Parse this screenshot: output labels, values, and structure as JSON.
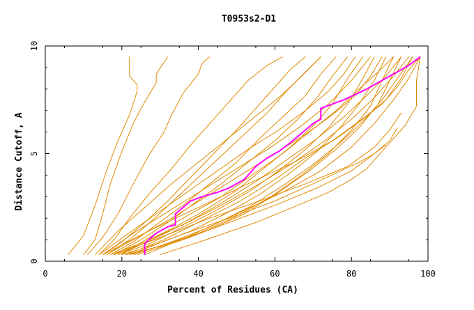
{
  "chart_data": {
    "type": "line",
    "title": "T0953s2-D1",
    "xlabel": "Percent of Residues (CA)",
    "ylabel": "Distance Cutoff, A",
    "xlim": [
      0,
      100
    ],
    "ylim": [
      0,
      10
    ],
    "x_ticks": [
      0,
      20,
      40,
      60,
      80,
      100
    ],
    "y_ticks": [
      0,
      5,
      10
    ],
    "x_tick_labels": [
      "0",
      "20",
      "40",
      "60",
      "80",
      "100"
    ],
    "y_tick_labels": [
      "0",
      "5",
      "10"
    ],
    "colors": {
      "background_series": "#e08a00",
      "highlight_series": "#ff00ff",
      "axis": "#000000"
    },
    "highlight_series": {
      "name": "highlight",
      "x": [
        26,
        26,
        27,
        29,
        32,
        34,
        34,
        36,
        38,
        41,
        45,
        48,
        52,
        54,
        55,
        58,
        61,
        64,
        66,
        68,
        70,
        72,
        72,
        78,
        84,
        88,
        92,
        95,
        98
      ],
      "y": [
        0.3,
        0.8,
        1.0,
        1.3,
        1.6,
        1.7,
        2.2,
        2.5,
        2.8,
        3.0,
        3.2,
        3.4,
        3.8,
        4.2,
        4.4,
        4.8,
        5.1,
        5.5,
        5.8,
        6.1,
        6.4,
        6.6,
        7.1,
        7.5,
        8.0,
        8.4,
        8.8,
        9.1,
        9.5
      ]
    },
    "series": [
      {
        "name": "s01",
        "x": [
          6,
          10,
          13,
          16,
          19,
          22,
          24,
          24,
          22,
          22
        ],
        "y": [
          0.3,
          1.2,
          2.6,
          4.2,
          5.6,
          6.8,
          7.9,
          8.2,
          8.6,
          9.5
        ]
      },
      {
        "name": "s02",
        "x": [
          10,
          13,
          15,
          17,
          20,
          23,
          25,
          29,
          29,
          32
        ],
        "y": [
          0.3,
          1.0,
          2.2,
          3.6,
          5.1,
          6.4,
          7.1,
          8.3,
          8.7,
          9.5
        ]
      },
      {
        "name": "s03",
        "x": [
          11,
          15,
          19,
          23,
          27,
          31,
          33,
          36,
          40,
          41,
          43
        ],
        "y": [
          0.3,
          1.1,
          2.2,
          3.6,
          4.9,
          6.0,
          6.8,
          7.8,
          8.7,
          9.2,
          9.5
        ]
      },
      {
        "name": "s04",
        "x": [
          14,
          18,
          22,
          27,
          33,
          38,
          43,
          48,
          53,
          58,
          62
        ],
        "y": [
          0.3,
          1.0,
          2.0,
          3.1,
          4.3,
          5.4,
          6.4,
          7.4,
          8.4,
          9.1,
          9.5
        ]
      },
      {
        "name": "s05",
        "x": [
          15,
          20,
          26,
          32,
          38,
          44,
          50,
          55,
          60,
          64,
          68
        ],
        "y": [
          0.3,
          0.9,
          1.8,
          2.8,
          3.9,
          5.0,
          6.1,
          7.1,
          8.1,
          8.9,
          9.5
        ]
      },
      {
        "name": "s06",
        "x": [
          16,
          22,
          28,
          34,
          40,
          46,
          52,
          58,
          63,
          68,
          72
        ],
        "y": [
          0.3,
          1.0,
          1.9,
          2.9,
          3.9,
          4.9,
          5.9,
          6.9,
          7.9,
          8.8,
          9.5
        ]
      },
      {
        "name": "s07",
        "x": [
          17,
          23,
          29,
          36,
          43,
          50,
          56,
          62,
          68,
          72,
          76
        ],
        "y": [
          0.3,
          0.9,
          1.7,
          2.6,
          3.6,
          4.6,
          5.7,
          6.7,
          7.7,
          8.7,
          9.5
        ]
      },
      {
        "name": "s08",
        "x": [
          18,
          25,
          32,
          39,
          46,
          53,
          60,
          66,
          71,
          75,
          79
        ],
        "y": [
          0.3,
          1.0,
          1.8,
          2.7,
          3.6,
          4.6,
          5.6,
          6.6,
          7.6,
          8.6,
          9.5
        ]
      },
      {
        "name": "s09",
        "x": [
          18,
          26,
          34,
          42,
          50,
          57,
          64,
          70,
          75,
          79,
          83
        ],
        "y": [
          0.3,
          0.9,
          1.6,
          2.4,
          3.3,
          4.3,
          5.3,
          6.3,
          7.3,
          8.5,
          9.5
        ]
      },
      {
        "name": "s10",
        "x": [
          19,
          27,
          35,
          44,
          53,
          61,
          68,
          74,
          79,
          83,
          86
        ],
        "y": [
          0.3,
          0.8,
          1.5,
          2.3,
          3.2,
          4.2,
          5.2,
          6.2,
          7.3,
          8.5,
          9.5
        ]
      },
      {
        "name": "s11",
        "x": [
          20,
          29,
          38,
          47,
          56,
          64,
          71,
          77,
          82,
          86,
          89
        ],
        "y": [
          0.3,
          0.8,
          1.4,
          2.2,
          3.1,
          4.1,
          5.1,
          6.2,
          7.3,
          8.4,
          9.5
        ]
      },
      {
        "name": "s12",
        "x": [
          21,
          30,
          40,
          50,
          59,
          67,
          74,
          80,
          85,
          88,
          91
        ],
        "y": [
          0.3,
          0.7,
          1.3,
          2.1,
          3.0,
          4.0,
          5.0,
          6.1,
          7.2,
          8.4,
          9.5
        ]
      },
      {
        "name": "s13",
        "x": [
          22,
          32,
          42,
          52,
          61,
          69,
          76,
          82,
          87,
          90,
          93
        ],
        "y": [
          0.3,
          0.8,
          1.4,
          2.2,
          3.2,
          4.2,
          5.2,
          6.2,
          7.3,
          8.4,
          9.5
        ]
      },
      {
        "name": "s14",
        "x": [
          16,
          24,
          33,
          42,
          51,
          60,
          68,
          75,
          81,
          85,
          88
        ],
        "y": [
          0.3,
          1.1,
          2.0,
          3.0,
          4.0,
          5.0,
          5.9,
          6.8,
          7.7,
          8.6,
          9.5
        ]
      },
      {
        "name": "s15",
        "x": [
          14,
          21,
          29,
          37,
          45,
          53,
          61,
          68,
          74,
          78,
          81
        ],
        "y": [
          0.3,
          1.2,
          2.2,
          3.2,
          4.2,
          5.2,
          6.1,
          7.0,
          7.9,
          8.7,
          9.5
        ]
      },
      {
        "name": "s16",
        "x": [
          19,
          28,
          37,
          46,
          55,
          63,
          71,
          78,
          84,
          89,
          93
        ],
        "y": [
          0.3,
          1.0,
          1.8,
          2.7,
          3.7,
          4.7,
          5.7,
          6.7,
          7.7,
          8.6,
          9.5
        ]
      },
      {
        "name": "s17",
        "x": [
          17,
          26,
          36,
          46,
          56,
          65,
          73,
          80,
          86,
          91,
          95
        ],
        "y": [
          0.3,
          0.9,
          1.7,
          2.6,
          3.6,
          4.6,
          5.6,
          6.6,
          7.6,
          8.6,
          9.5
        ]
      },
      {
        "name": "s18",
        "x": [
          23,
          33,
          43,
          53,
          62,
          70,
          77,
          83,
          88,
          92,
          96
        ],
        "y": [
          0.3,
          0.9,
          1.6,
          2.5,
          3.5,
          4.5,
          5.5,
          6.5,
          7.5,
          8.5,
          9.5
        ]
      },
      {
        "name": "s19",
        "x": [
          21,
          31,
          41,
          51,
          60,
          68,
          76,
          83,
          89,
          93,
          96
        ],
        "y": [
          0.3,
          1.0,
          1.9,
          2.8,
          3.8,
          4.8,
          5.7,
          6.6,
          7.5,
          8.5,
          9.5
        ]
      },
      {
        "name": "s20",
        "x": [
          20,
          28,
          37,
          46,
          54,
          62,
          69,
          76,
          82,
          87,
          91
        ],
        "y": [
          0.3,
          1.2,
          2.1,
          3.0,
          4.0,
          5.0,
          6.0,
          7.0,
          8.0,
          8.8,
          9.5
        ]
      },
      {
        "name": "s21",
        "x": [
          18,
          30,
          43,
          56,
          68,
          79,
          86,
          90,
          93
        ],
        "y": [
          0.3,
          1.1,
          2.0,
          2.8,
          3.6,
          4.4,
          5.3,
          6.1,
          6.9
        ]
      },
      {
        "name": "s22",
        "x": [
          24,
          36,
          48,
          60,
          71,
          80,
          86,
          90,
          92
        ],
        "y": [
          0.3,
          1.0,
          1.8,
          2.6,
          3.4,
          4.2,
          5.0,
          5.6,
          6.2
        ]
      },
      {
        "name": "s23",
        "x": [
          22,
          35,
          48,
          60,
          70,
          76,
          82,
          86,
          89
        ],
        "y": [
          0.3,
          1.2,
          2.0,
          2.8,
          3.6,
          4.1,
          4.6,
          5.0,
          5.4
        ]
      },
      {
        "name": "s24",
        "x": [
          30,
          42,
          55,
          66,
          74,
          80,
          84,
          89,
          94,
          97,
          97,
          98
        ],
        "y": [
          0.3,
          1.0,
          1.8,
          2.6,
          3.2,
          3.8,
          4.3,
          5.3,
          6.3,
          7.2,
          8.4,
          9.5
        ]
      },
      {
        "name": "s25",
        "x": [
          15,
          27,
          40,
          53,
          65,
          75,
          82,
          88,
          92,
          95,
          98
        ],
        "y": [
          0.3,
          1.4,
          2.5,
          3.6,
          4.6,
          5.6,
          6.5,
          7.3,
          8.1,
          8.9,
          9.5
        ]
      },
      {
        "name": "s26",
        "x": [
          26,
          38,
          50,
          62,
          72,
          80,
          86,
          91,
          95,
          98
        ],
        "y": [
          0.3,
          1.2,
          2.2,
          3.2,
          4.2,
          5.3,
          6.4,
          7.5,
          8.5,
          9.5
        ]
      },
      {
        "name": "s27",
        "x": [
          13,
          19,
          26,
          33,
          40,
          47,
          54,
          61,
          67,
          72
        ],
        "y": [
          0.3,
          1.4,
          2.5,
          3.6,
          4.6,
          5.6,
          6.6,
          7.6,
          8.6,
          9.5
        ]
      },
      {
        "name": "s28",
        "x": [
          15,
          23,
          32,
          41,
          50,
          59,
          67,
          74,
          80,
          85
        ],
        "y": [
          0.3,
          1.3,
          2.3,
          3.3,
          4.3,
          5.3,
          6.3,
          7.3,
          8.4,
          9.5
        ]
      }
    ]
  }
}
